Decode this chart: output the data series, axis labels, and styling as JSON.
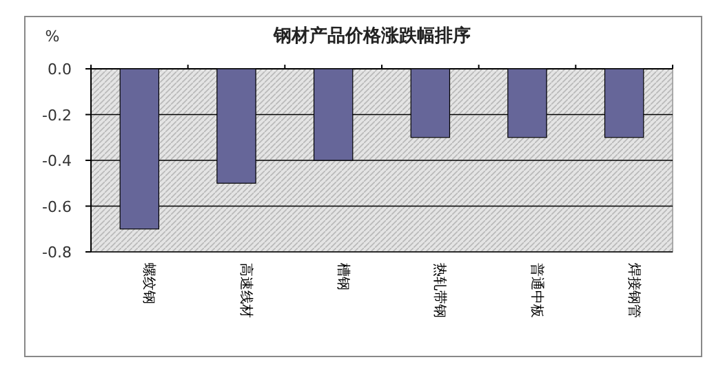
{
  "chart_data": {
    "type": "bar",
    "title": "钢材产品价格涨跌幅排序",
    "ylabel": "%",
    "categories": [
      "螺纹钢",
      "高速线材",
      "槽钢",
      "热轧带钢",
      "普通中板",
      "焊接钢管"
    ],
    "values": [
      -0.7,
      -0.5,
      -0.4,
      -0.3,
      -0.3,
      -0.3
    ],
    "color": "#666699",
    "ylim": [
      -0.8,
      0
    ],
    "yticks": [
      {
        "value": 0,
        "label": "0.0"
      },
      {
        "value": -0.2,
        "label": "-0.2"
      },
      {
        "value": -0.4,
        "label": "-0.4"
      },
      {
        "value": -0.6,
        "label": "-0.6"
      },
      {
        "value": -0.8,
        "label": "-0.8"
      }
    ],
    "grid": "y"
  }
}
